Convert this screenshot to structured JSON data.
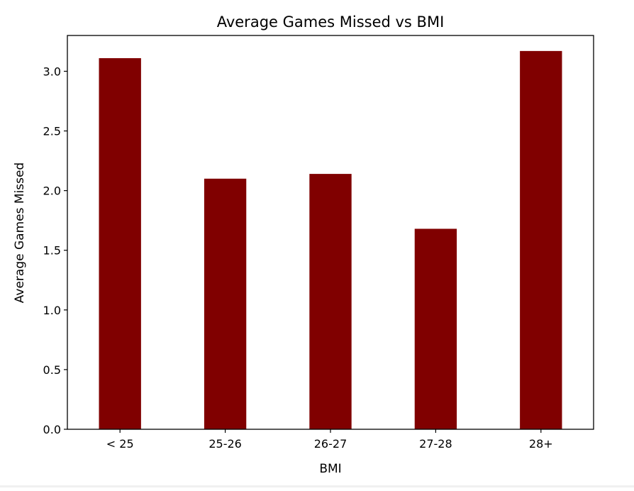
{
  "chart_data": {
    "type": "bar",
    "title": "Average Games Missed vs BMI",
    "xlabel": "BMI",
    "ylabel": "Average Games Missed",
    "categories": [
      "< 25",
      "25-26",
      "26-27",
      "27-28",
      "28+"
    ],
    "values": [
      3.11,
      2.1,
      2.14,
      1.68,
      3.17
    ],
    "ylim": [
      0,
      3.3
    ],
    "yticks": [
      "0.0",
      "0.5",
      "1.0",
      "1.5",
      "2.0",
      "2.5",
      "3.0"
    ],
    "bar_color": "#800000",
    "grid": false,
    "legend": "none"
  }
}
